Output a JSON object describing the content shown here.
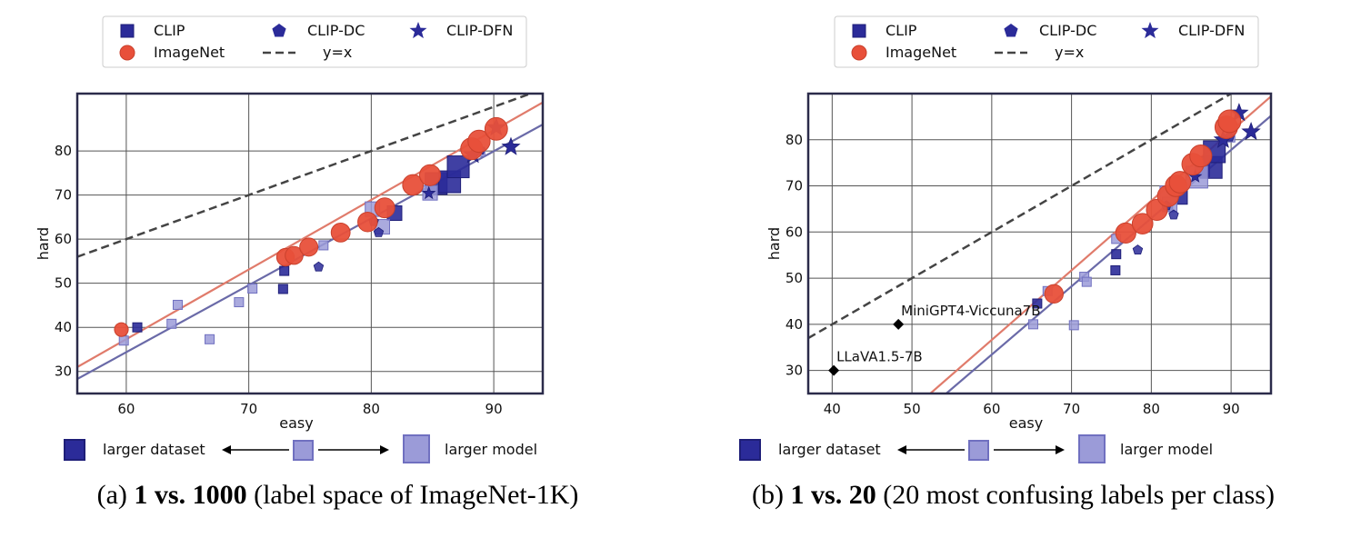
{
  "colors": {
    "clip": "#2b2b99",
    "imagenet": "#e8503a",
    "imagenet_edge": "#c9402c",
    "light": "#9b9bd8",
    "lightEdge": "#7070c0",
    "blueLine": "#6a6aa8",
    "redLine": "#e07b6b",
    "diag": "#444444"
  },
  "legend": {
    "clip": "CLIP",
    "clipdc": "CLIP-DC",
    "clipdfn": "CLIP-DFN",
    "imagenet": "ImageNet",
    "yx": "y=x"
  },
  "sizeKey": {
    "larger_dataset": "larger dataset",
    "larger_model": "larger model"
  },
  "captions": [
    {
      "prefix": "(a) ",
      "bold": "1 vs. 1000",
      "rest": " (label space of ImageNet-1K)"
    },
    {
      "prefix": "(b) ",
      "bold": "1 vs. 20",
      "rest": " (20 most confusing labels per class)"
    }
  ],
  "chart_data": [
    {
      "type": "scatter",
      "title": "",
      "xlabel": "easy",
      "ylabel": "hard",
      "xlim": [
        56,
        94
      ],
      "ylim": [
        25,
        93
      ],
      "xticks": [
        60,
        70,
        80,
        90
      ],
      "yticks": [
        30,
        40,
        50,
        60,
        70,
        80
      ],
      "grid": true,
      "legend_position": "top",
      "lines": [
        {
          "name": "y=x",
          "style": "dashed",
          "slope": 1,
          "intercept": 0
        },
        {
          "name": "CLIP fit",
          "style": "solid",
          "points": [
            [
              56,
              28.3
            ],
            [
              94,
              86
            ]
          ]
        },
        {
          "name": "ImageNet fit",
          "style": "solid",
          "points": [
            [
              56,
              31.0
            ],
            [
              94,
              91
            ]
          ]
        }
      ],
      "series": [
        {
          "name": "CLIP",
          "marker": "square",
          "points": [
            [
              60.9,
              40.0,
              1,
              1
            ],
            [
              72.8,
              48.7,
              1,
              1
            ],
            [
              72.9,
              52.8,
              1,
              1
            ],
            [
              81.9,
              65.9,
              2,
              1
            ],
            [
              85.3,
              72.6,
              3,
              1
            ],
            [
              86.4,
              73.0,
              3,
              1
            ],
            [
              87.1,
              76.4,
              3,
              1
            ],
            [
              59.8,
              37.0,
              1,
              2
            ],
            [
              64.2,
              45.1,
              1,
              2
            ],
            [
              63.7,
              40.8,
              1,
              2
            ],
            [
              66.8,
              37.3,
              1,
              2
            ],
            [
              69.2,
              45.7,
              1,
              2
            ],
            [
              70.3,
              48.8,
              1,
              2
            ],
            [
              76.1,
              58.6,
              1,
              2
            ],
            [
              80.1,
              66.8,
              2,
              2
            ],
            [
              80.9,
              62.8,
              2,
              2
            ],
            [
              84.8,
              70.5,
              2,
              2
            ],
            [
              88.9,
              79.8,
              1,
              2
            ]
          ]
        },
        {
          "name": "CLIP-DC",
          "marker": "pentagon",
          "points": [
            [
              80.2,
              64.0,
              1,
              1
            ],
            [
              80.6,
              61.5,
              1,
              1
            ],
            [
              75.7,
              53.7,
              1,
              1
            ],
            [
              88.9,
              80.2,
              1,
              1
            ]
          ]
        },
        {
          "name": "CLIP-DFN",
          "marker": "star",
          "points": [
            [
              84.7,
              70.4,
              1,
              1
            ],
            [
              88.3,
              79.1,
              2,
              1
            ],
            [
              90.2,
              85.3,
              2,
              1
            ],
            [
              91.4,
              80.9,
              2,
              1
            ]
          ]
        },
        {
          "name": "ImageNet",
          "marker": "circle",
          "points": [
            [
              59.6,
              39.5
            ],
            [
              73.0,
              55.9
            ],
            [
              73.7,
              56.3
            ],
            [
              74.9,
              58.2
            ],
            [
              77.5,
              61.5
            ],
            [
              79.7,
              63.9
            ],
            [
              81.1,
              67.1
            ],
            [
              83.4,
              72.3
            ],
            [
              84.8,
              74.5
            ],
            [
              88.2,
              80.5
            ],
            [
              88.8,
              82.2
            ],
            [
              90.2,
              85.0
            ]
          ]
        }
      ]
    },
    {
      "type": "scatter",
      "title": "",
      "xlabel": "easy",
      "ylabel": "hard",
      "xlim": [
        37,
        95
      ],
      "ylim": [
        25,
        90
      ],
      "xticks": [
        40,
        50,
        60,
        70,
        80,
        90
      ],
      "yticks": [
        30,
        40,
        50,
        60,
        70,
        80
      ],
      "grid": true,
      "legend_position": "top",
      "lines": [
        {
          "name": "y=x",
          "style": "dashed",
          "slope": 1,
          "intercept": 0
        },
        {
          "name": "CLIP fit",
          "style": "solid",
          "points": [
            [
              54.3,
              25
            ],
            [
              95,
              85.2
            ]
          ]
        },
        {
          "name": "ImageNet fit",
          "style": "solid",
          "points": [
            [
              52.3,
              25
            ],
            [
              95,
              89.4
            ]
          ]
        }
      ],
      "series": [
        {
          "name": "CLIP",
          "marker": "square",
          "points": [
            [
              65.7,
              44.5,
              1,
              1
            ],
            [
              75.5,
              51.7,
              1,
              1
            ],
            [
              75.6,
              55.2,
              1,
              1
            ],
            [
              82.1,
              65.4,
              1,
              1
            ],
            [
              83.6,
              67.6,
              2,
              1
            ],
            [
              86.4,
              73.6,
              2,
              1
            ],
            [
              87.5,
              74.0,
              3,
              1
            ],
            [
              87.9,
              77.4,
              3,
              1
            ],
            [
              65.2,
              40.0,
              1,
              2
            ],
            [
              67.0,
              47.2,
              1,
              2
            ],
            [
              70.3,
              39.8,
              1,
              2
            ],
            [
              71.6,
              50.3,
              1,
              2
            ],
            [
              71.9,
              49.2,
              1,
              2
            ],
            [
              75.6,
              58.5,
              1,
              2
            ],
            [
              82.0,
              68.4,
              2,
              2
            ],
            [
              82.3,
              66.0,
              2,
              2
            ],
            [
              85.7,
              71.9,
              3,
              2
            ],
            [
              89.9,
              80.5,
              1,
              2
            ]
          ]
        },
        {
          "name": "CLIP-DC",
          "marker": "pentagon",
          "points": [
            [
              81.9,
              65.7,
              1,
              1
            ],
            [
              82.8,
              63.7,
              1,
              1
            ],
            [
              78.3,
              56.1,
              1,
              1
            ],
            [
              89.8,
              80.6,
              1,
              1
            ]
          ]
        },
        {
          "name": "CLIP-DFN",
          "marker": "star",
          "points": [
            [
              85.5,
              72.0,
              1,
              1
            ],
            [
              89.0,
              80.0,
              2,
              1
            ],
            [
              91.0,
              85.8,
              2,
              1
            ],
            [
              92.5,
              81.7,
              2,
              1
            ]
          ]
        },
        {
          "name": "ImageNet",
          "marker": "circle",
          "points": [
            [
              67.8,
              46.6
            ],
            [
              76.8,
              59.8
            ],
            [
              78.9,
              61.8
            ],
            [
              80.7,
              64.8
            ],
            [
              82.1,
              67.8
            ],
            [
              83.1,
              70.0
            ],
            [
              83.6,
              70.8
            ],
            [
              85.2,
              74.7
            ],
            [
              86.2,
              76.5
            ],
            [
              89.4,
              82.7
            ],
            [
              89.8,
              84.0
            ]
          ]
        },
        {
          "name": "MLLM",
          "marker": "diamond",
          "points": [
            {
              "x": 40.2,
              "y": 30.0,
              "label": "LLaVA1.5-7B"
            },
            {
              "x": 48.3,
              "y": 40.0,
              "label": "MiniGPT4-Viccuna7B"
            }
          ]
        }
      ]
    }
  ]
}
